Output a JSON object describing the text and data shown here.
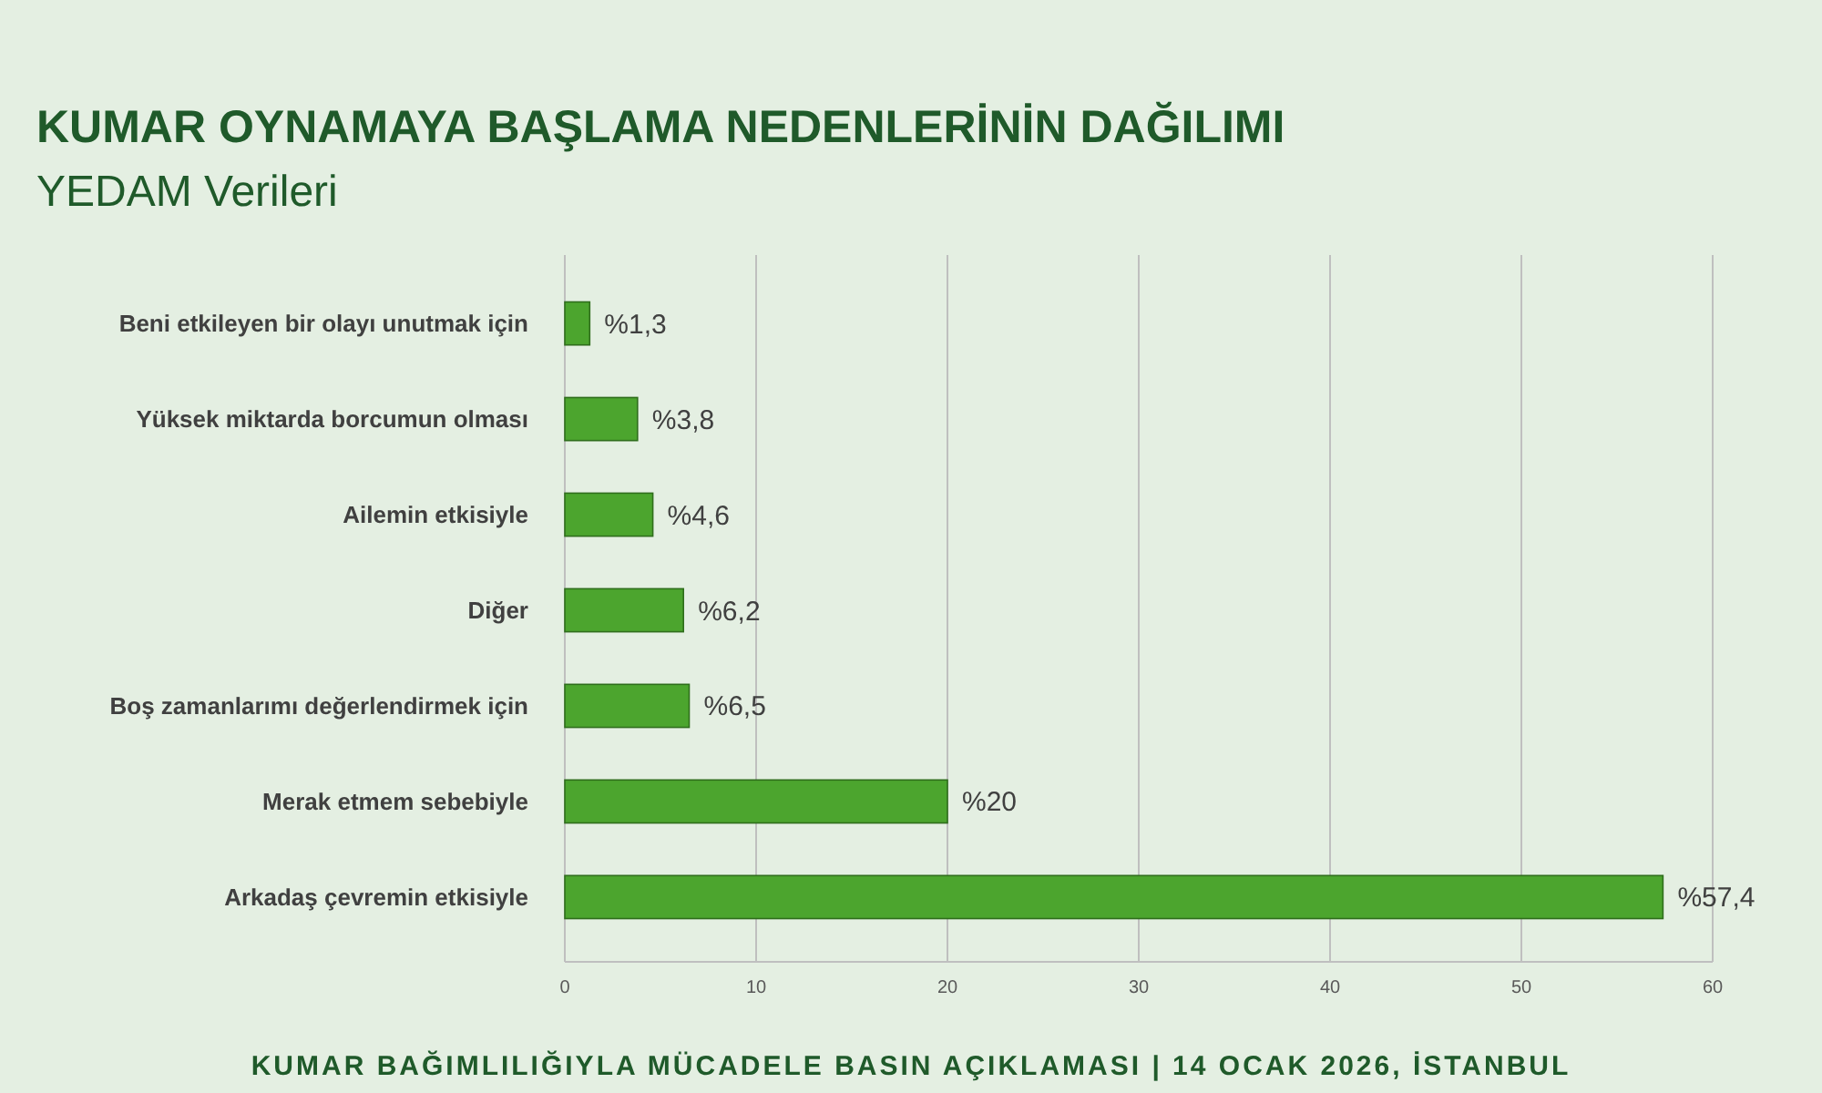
{
  "chart_data": {
    "type": "bar",
    "orientation": "horizontal",
    "title": "KUMAR OYNAMAYA BAŞLAMA NEDENLERİNİN DAĞILIMI",
    "subtitle": "YEDAM Verileri",
    "categories": [
      "Beni etkileyen bir olayı unutmak için",
      "Yüksek miktarda borcumun olması",
      "Ailemin etkisiyle",
      "Diğer",
      "Boş zamanlarımı değerlendirmek için",
      "Merak etmem sebebiyle",
      "Arkadaş çevremin etkisiyle"
    ],
    "values": [
      1.3,
      3.8,
      4.6,
      6.2,
      6.5,
      20,
      57.4
    ],
    "value_labels": [
      "%1,3",
      "%3,8",
      "%4,6",
      "%6,2",
      "%6,5",
      "%20",
      "%57,4"
    ],
    "color": "#4ca52e",
    "xlim": [
      0,
      60
    ],
    "xticks": [
      0,
      10,
      20,
      30,
      40,
      50,
      60
    ],
    "grid": "x",
    "annotations": [
      "KUMAR BAĞIMLILIĞIYLA MÜCADELE BASIN AÇIKLAMASI | 14 OCAK 2026, İSTANBUL"
    ]
  }
}
